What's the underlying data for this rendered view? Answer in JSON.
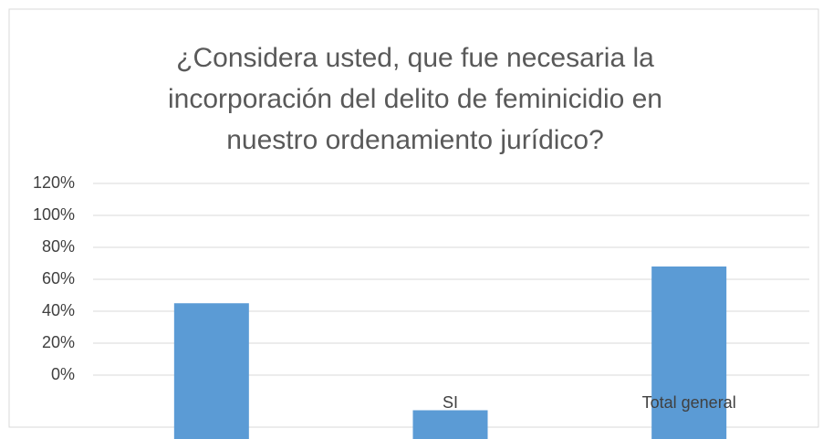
{
  "chart_data": {
    "type": "bar",
    "title": [
      "¿Considera usted, que fue necesaria la",
      "incorporación del delito de feminicidio en",
      "nuestro ordenamiento jurídico?"
    ],
    "categories": [
      null,
      "SI",
      "Total general"
    ],
    "values": [
      45,
      -22,
      68
    ],
    "color": "#5b9bd5",
    "ylim": [
      -40,
      120
    ],
    "yticks": [
      {
        "value": 0,
        "label": "0%"
      },
      {
        "value": 20,
        "label": "20%"
      },
      {
        "value": 40,
        "label": "40%"
      },
      {
        "value": 60,
        "label": "60%"
      },
      {
        "value": 80,
        "label": "80%"
      },
      {
        "value": 100,
        "label": "100%"
      },
      {
        "value": 120,
        "label": "120%"
      }
    ],
    "grid": true
  }
}
